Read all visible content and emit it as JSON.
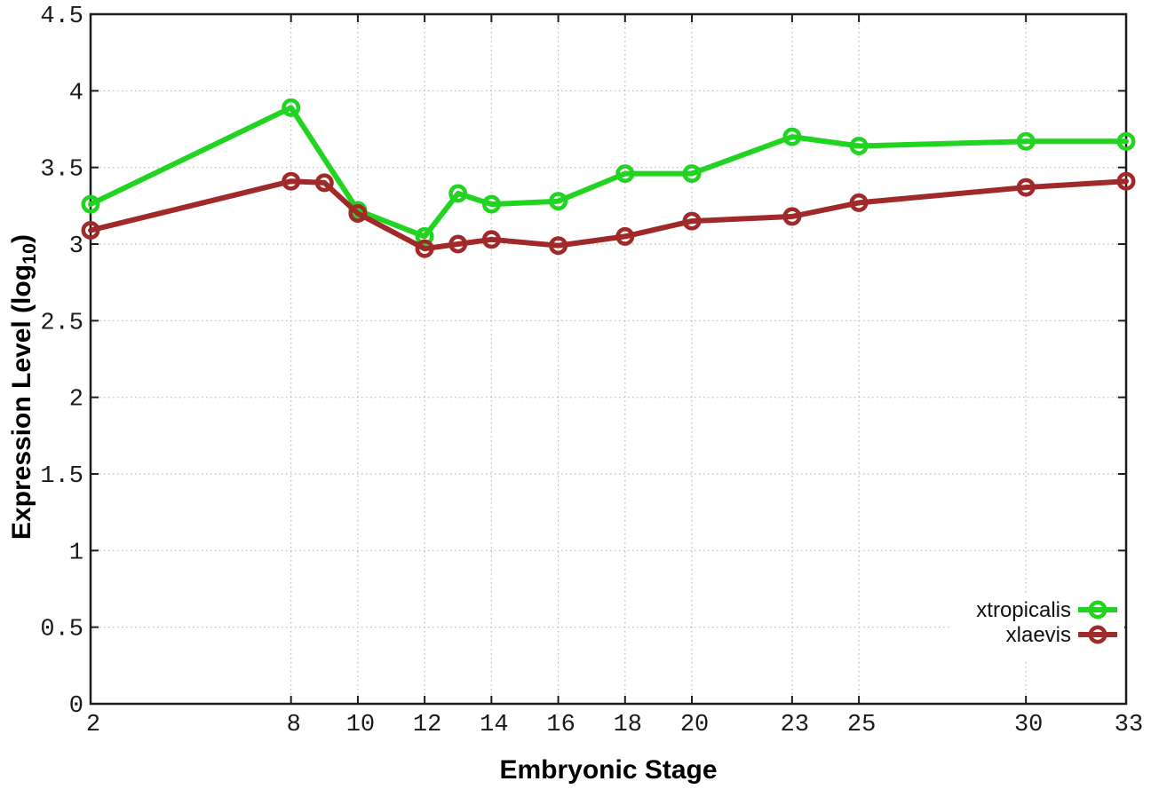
{
  "figure": {
    "background": "#ffffff",
    "border_color": "#1c1c1c",
    "grid_color": "#b9b9b9",
    "tick_label_color": "#1a1a1a",
    "legend_text_color": "#111111"
  },
  "x_axis": {
    "title": "Embryonic Stage",
    "ticks": [
      2,
      8,
      10,
      12,
      14,
      16,
      18,
      20,
      23,
      25,
      30,
      33
    ],
    "range": [
      2,
      33
    ]
  },
  "y_axis": {
    "title_prefix": "Expression Level (log",
    "title_sub": "10",
    "title_suffix": ")",
    "ticks": [
      0,
      0.5,
      1,
      1.5,
      2,
      2.5,
      3,
      3.5,
      4,
      4.5
    ],
    "range": [
      0,
      4.5
    ]
  },
  "chart_data": {
    "type": "line",
    "title": "",
    "xlabel": "Embryonic Stage",
    "ylabel": "Expression Level (log10)",
    "xlim": [
      2,
      33
    ],
    "ylim": [
      0,
      4.5
    ],
    "x_ticks": [
      2,
      8,
      10,
      12,
      14,
      16,
      18,
      20,
      23,
      25,
      30,
      33
    ],
    "y_ticks": [
      0,
      0.5,
      1,
      1.5,
      2,
      2.5,
      3,
      3.5,
      4,
      4.5
    ],
    "grid": true,
    "legend_position": "bottom-right",
    "marker": "open-circle",
    "series": [
      {
        "name": "xtropicalis",
        "color": "#22d422",
        "x": [
          2,
          8,
          10,
          12,
          13,
          14,
          16,
          18,
          20,
          23,
          25,
          30,
          33
        ],
        "y": [
          3.26,
          3.89,
          3.22,
          3.05,
          3.33,
          3.26,
          3.28,
          3.46,
          3.46,
          3.7,
          3.64,
          3.67,
          3.67
        ]
      },
      {
        "name": "xlaevis",
        "color": "#a02a2a",
        "x": [
          2,
          8,
          9,
          10,
          12,
          13,
          14,
          16,
          18,
          20,
          23,
          25,
          30,
          33
        ],
        "y": [
          3.09,
          3.41,
          3.4,
          3.2,
          2.97,
          3.0,
          3.03,
          2.99,
          3.05,
          3.15,
          3.18,
          3.27,
          3.37,
          3.41
        ]
      }
    ]
  }
}
